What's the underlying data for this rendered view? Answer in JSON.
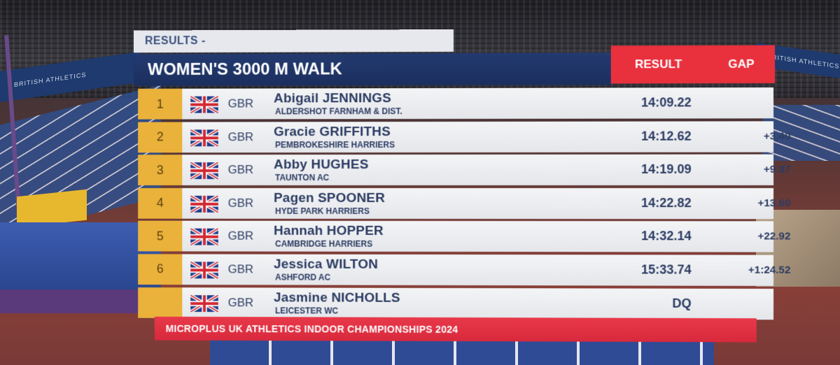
{
  "header": {
    "results_label": "RESULTS -",
    "event_title": "WOMEN'S 3000 M WALK",
    "result_col": "RESULT",
    "gap_col": "GAP"
  },
  "colors": {
    "header_navy": "#1f3366",
    "accent_red": "#e8313d",
    "rank_gold": "#eab23a",
    "row_bg": "#ecedf0",
    "text_navy": "#2b3b62"
  },
  "rows": [
    {
      "rank": "1",
      "country": "GBR",
      "name": "Abigail JENNINGS",
      "club": "ALDERSHOT FARNHAM & DIST.",
      "result": "14:09.22",
      "gap": "",
      "flag_icon": "uk-flag-icon"
    },
    {
      "rank": "2",
      "country": "GBR",
      "name": "Gracie GRIFFITHS",
      "club": "PEMBROKESHIRE HARRIERS",
      "result": "14:12.62",
      "gap": "+3.40",
      "flag_icon": "uk-flag-icon"
    },
    {
      "rank": "3",
      "country": "GBR",
      "name": "Abby HUGHES",
      "club": "TAUNTON AC",
      "result": "14:19.09",
      "gap": "+9.87",
      "flag_icon": "uk-flag-icon"
    },
    {
      "rank": "4",
      "country": "GBR",
      "name": "Pagen SPOONER",
      "club": "HYDE PARK HARRIERS",
      "result": "14:22.82",
      "gap": "+13.60",
      "flag_icon": "uk-flag-icon"
    },
    {
      "rank": "5",
      "country": "GBR",
      "name": "Hannah HOPPER",
      "club": "CAMBRIDGE HARRIERS",
      "result": "14:32.14",
      "gap": "+22.92",
      "flag_icon": "uk-flag-icon"
    },
    {
      "rank": "6",
      "country": "GBR",
      "name": "Jessica WILTON",
      "club": "ASHFORD AC",
      "result": "15:33.74",
      "gap": "+1:24.52",
      "flag_icon": "uk-flag-icon"
    },
    {
      "rank": "",
      "country": "GBR",
      "name": "Jasmine NICHOLLS",
      "club": "LEICESTER WC",
      "result": "DQ",
      "gap": "",
      "flag_icon": "uk-flag-icon"
    }
  ],
  "footer": {
    "championship": "MICROPLUS UK ATHLETICS INDOOR CHAMPIONSHIPS 2024"
  },
  "background": {
    "banner_left": "BRITISH ATHLETICS",
    "banner_right": "BRITISH ATHLETICS"
  }
}
